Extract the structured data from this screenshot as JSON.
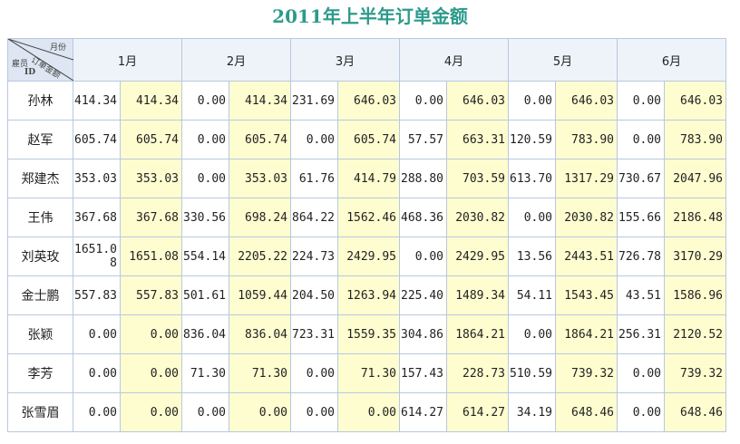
{
  "title": "2011年上半年订单金额",
  "corner": {
    "months_label": "月份",
    "amount_label": "订单金额",
    "employee_label": "雇员",
    "id_label": "ID"
  },
  "months": [
    "1月",
    "2月",
    "3月",
    "4月",
    "5月",
    "6月"
  ],
  "rows": [
    {
      "name": "孙林",
      "cells": [
        "414.34",
        "414.34",
        "0.00",
        "414.34",
        "231.69",
        "646.03",
        "0.00",
        "646.03",
        "0.00",
        "646.03",
        "0.00",
        "646.03"
      ]
    },
    {
      "name": "赵军",
      "cells": [
        "605.74",
        "605.74",
        "0.00",
        "605.74",
        "0.00",
        "605.74",
        "57.57",
        "663.31",
        "120.59",
        "783.90",
        "0.00",
        "783.90"
      ]
    },
    {
      "name": "郑建杰",
      "cells": [
        "353.03",
        "353.03",
        "0.00",
        "353.03",
        "61.76",
        "414.79",
        "288.80",
        "703.59",
        "613.70",
        "1317.29",
        "730.67",
        "2047.96"
      ]
    },
    {
      "name": "王伟",
      "cells": [
        "367.68",
        "367.68",
        "330.56",
        "698.24",
        "864.22",
        "1562.46",
        "468.36",
        "2030.82",
        "0.00",
        "2030.82",
        "155.66",
        "2186.48"
      ]
    },
    {
      "name": "刘英玫",
      "cells": [
        "1651.08",
        "1651.08",
        "554.14",
        "2205.22",
        "224.73",
        "2429.95",
        "0.00",
        "2429.95",
        "13.56",
        "2443.51",
        "726.78",
        "3170.29"
      ]
    },
    {
      "name": "金士鹏",
      "cells": [
        "557.83",
        "557.83",
        "501.61",
        "1059.44",
        "204.50",
        "1263.94",
        "225.40",
        "1489.34",
        "54.11",
        "1543.45",
        "43.51",
        "1586.96"
      ]
    },
    {
      "name": "张颖",
      "cells": [
        "0.00",
        "0.00",
        "836.04",
        "836.04",
        "723.31",
        "1559.35",
        "304.86",
        "1864.21",
        "0.00",
        "1864.21",
        "256.31",
        "2120.52"
      ]
    },
    {
      "name": "李芳",
      "cells": [
        "0.00",
        "0.00",
        "71.30",
        "71.30",
        "0.00",
        "71.30",
        "157.43",
        "228.73",
        "510.59",
        "739.32",
        "0.00",
        "739.32"
      ]
    },
    {
      "name": "张雪眉",
      "cells": [
        "0.00",
        "0.00",
        "0.00",
        "0.00",
        "0.00",
        "0.00",
        "614.27",
        "614.27",
        "34.19",
        "648.46",
        "0.00",
        "648.46"
      ]
    }
  ]
}
